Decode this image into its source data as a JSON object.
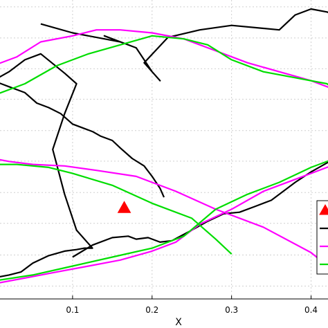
{
  "chart_data": {
    "type": "line",
    "xlabel": "X",
    "ylabel": "",
    "xlim": [
      0.0,
      0.43
    ],
    "ylim": [
      0.0,
      1.0
    ],
    "xticks": [
      0.1,
      0.2,
      0.3,
      0.4
    ],
    "xtick_labels": [
      "0.1",
      "0.2",
      "0.3",
      "0.4"
    ],
    "ygrid": [
      0.043,
      0.147,
      0.253,
      0.356,
      0.461,
      0.563,
      0.668,
      0.77,
      0.873,
      0.977
    ],
    "grid": true,
    "legend_position": "right",
    "series": [
      {
        "color": "#000000",
        "marker": "none",
        "x": [
          0.0,
          0.02,
          0.035,
          0.05,
          0.07,
          0.09,
          0.105,
          0.115,
          0.125,
          0.105,
          0.09,
          0.075,
          0.09,
          0.105,
          0.09,
          0.06,
          0.04,
          0.02,
          0.0
        ],
        "y": [
          0.07,
          0.08,
          0.09,
          0.12,
          0.145,
          0.16,
          0.165,
          0.17,
          0.17,
          0.23,
          0.35,
          0.5,
          0.62,
          0.72,
          0.755,
          0.82,
          0.8,
          0.76,
          0.73
        ]
      },
      {
        "color": "#000000",
        "marker": "none",
        "x": [
          0.0,
          0.02,
          0.04,
          0.055,
          0.07,
          0.085,
          0.1,
          0.115,
          0.125,
          0.135,
          0.15,
          0.16,
          0.175,
          0.19,
          0.2,
          0.21,
          0.215
        ],
        "y": [
          0.73,
          0.71,
          0.69,
          0.655,
          0.64,
          0.62,
          0.585,
          0.57,
          0.56,
          0.545,
          0.53,
          0.505,
          0.47,
          0.445,
          0.41,
          0.37,
          0.34
        ]
      },
      {
        "color": "#000000",
        "marker": "none",
        "x": [
          0.06,
          0.1,
          0.14,
          0.16,
          0.14,
          0.18,
          0.2,
          0.21,
          0.19,
          0.22,
          0.26,
          0.3,
          0.34,
          0.36,
          0.38,
          0.4,
          0.42,
          0.43
        ],
        "y": [
          0.92,
          0.89,
          0.87,
          0.86,
          0.88,
          0.84,
          0.76,
          0.73,
          0.79,
          0.875,
          0.9,
          0.915,
          0.905,
          0.9,
          0.95,
          0.97,
          0.96,
          0.95
        ]
      },
      {
        "color": "#000000",
        "marker": "none",
        "x": [
          0.1,
          0.125,
          0.15,
          0.17,
          0.18,
          0.195,
          0.21,
          0.225,
          0.25,
          0.27,
          0.29,
          0.31,
          0.33,
          0.35,
          0.38,
          0.4,
          0.42,
          0.43
        ],
        "y": [
          0.14,
          0.18,
          0.205,
          0.21,
          0.2,
          0.205,
          0.19,
          0.195,
          0.23,
          0.26,
          0.285,
          0.29,
          0.31,
          0.33,
          0.39,
          0.425,
          0.455,
          0.47
        ]
      },
      {
        "color": "#ff00ff",
        "marker": "none",
        "x": [
          0.0,
          0.02,
          0.05,
          0.09,
          0.13,
          0.18,
          0.23,
          0.28,
          0.34,
          0.4,
          0.43
        ],
        "y": [
          0.47,
          0.46,
          0.45,
          0.445,
          0.43,
          0.41,
          0.36,
          0.3,
          0.24,
          0.155,
          0.09
        ]
      },
      {
        "color": "#ff00ff",
        "marker": "none",
        "x": [
          0.0,
          0.03,
          0.06,
          0.1,
          0.13,
          0.16,
          0.2,
          0.24,
          0.28,
          0.32,
          0.36,
          0.4,
          0.43
        ],
        "y": [
          0.78,
          0.81,
          0.86,
          0.88,
          0.9,
          0.9,
          0.89,
          0.87,
          0.83,
          0.79,
          0.76,
          0.73,
          0.7
        ]
      },
      {
        "color": "#ff00ff",
        "marker": "none",
        "x": [
          0.0,
          0.04,
          0.08,
          0.12,
          0.16,
          0.2,
          0.23,
          0.26,
          0.3,
          0.34,
          0.38,
          0.42,
          0.43
        ],
        "y": [
          0.05,
          0.07,
          0.09,
          0.11,
          0.13,
          0.16,
          0.19,
          0.25,
          0.3,
          0.36,
          0.4,
          0.44,
          0.45
        ]
      },
      {
        "color": "#00dd00",
        "marker": "none",
        "x": [
          0.0,
          0.04,
          0.08,
          0.12,
          0.16,
          0.2,
          0.24,
          0.27,
          0.3,
          0.34,
          0.38,
          0.42,
          0.43
        ],
        "y": [
          0.68,
          0.72,
          0.78,
          0.82,
          0.85,
          0.88,
          0.87,
          0.85,
          0.8,
          0.76,
          0.74,
          0.72,
          0.7
        ]
      },
      {
        "color": "#00dd00",
        "marker": "none",
        "x": [
          0.0,
          0.03,
          0.07,
          0.1,
          0.15,
          0.2,
          0.25,
          0.28,
          0.3
        ],
        "y": [
          0.45,
          0.45,
          0.44,
          0.42,
          0.38,
          0.32,
          0.27,
          0.2,
          0.15
        ]
      },
      {
        "color": "#00dd00",
        "marker": "none",
        "x": [
          0.0,
          0.05,
          0.1,
          0.15,
          0.2,
          0.24,
          0.28,
          0.32,
          0.36,
          0.4,
          0.43
        ],
        "y": [
          0.06,
          0.08,
          0.11,
          0.14,
          0.17,
          0.21,
          0.3,
          0.35,
          0.39,
          0.44,
          0.47
        ]
      },
      {
        "color": "#ff0000",
        "marker": "triangle",
        "x": [
          0.165
        ],
        "y": [
          0.305
        ]
      }
    ],
    "legend_items": [
      {
        "color": "#ff0000",
        "kind": "triangle"
      },
      {
        "color": "#000000",
        "kind": "line"
      },
      {
        "color": "#ff00ff",
        "kind": "line"
      },
      {
        "color": "#00dd00",
        "kind": "line"
      }
    ]
  }
}
